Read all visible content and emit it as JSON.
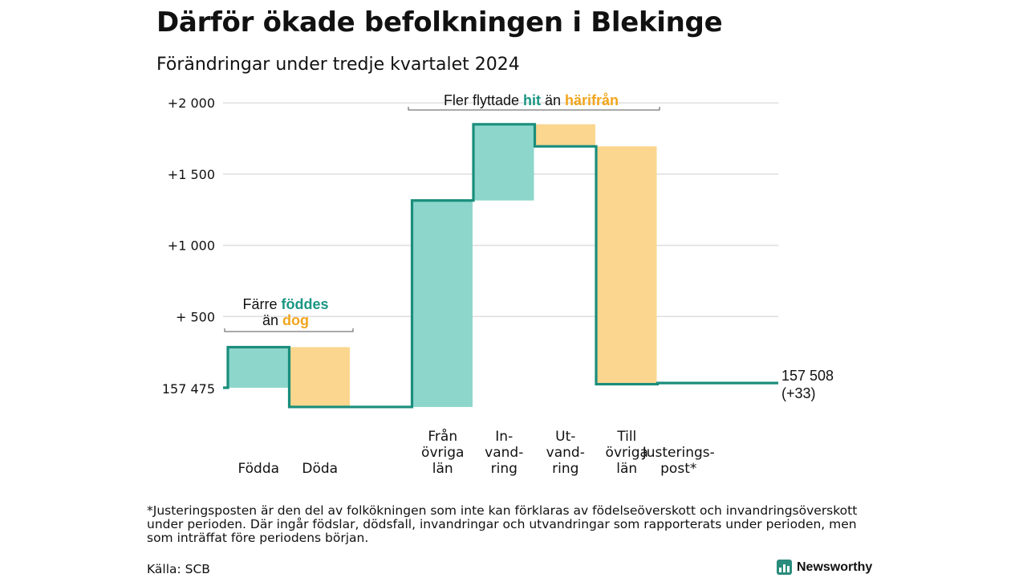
{
  "header": {
    "title": "Därför ökade befolkningen i Blekinge",
    "subtitle": "Förändringar under tredje kvartalet 2024"
  },
  "colors": {
    "increase_fill": "#8dd6cc",
    "decrease_fill": "#fbd68f",
    "line": "#1a8e7c",
    "accent_green": "#1a9683",
    "accent_orange": "#f2a51c",
    "grid": "#dedede"
  },
  "chart_data": {
    "type": "waterfall",
    "start": {
      "label": "157 475",
      "value": 0
    },
    "end": {
      "label": "157 508",
      "sublabel": "(+33)",
      "value": 33
    },
    "yticks": [
      {
        "value": 500,
        "label": "+  500"
      },
      {
        "value": 1000,
        "label": "+1 000"
      },
      {
        "value": 1500,
        "label": "+1 500"
      },
      {
        "value": 2000,
        "label": "+2 000"
      }
    ],
    "ylim": [
      -140,
      2030
    ],
    "grid": true,
    "steps": [
      {
        "label": "Födda",
        "label_lines": [
          "Födda"
        ],
        "change": 285,
        "start": 0,
        "end": 285,
        "type": "increase"
      },
      {
        "label": "Döda",
        "label_lines": [
          "Döda"
        ],
        "change": -420,
        "start": 285,
        "end": -135,
        "type": "decrease"
      },
      {
        "label": "",
        "label_lines": [],
        "change": 0,
        "start": -135,
        "end": -135,
        "type": "gap"
      },
      {
        "label": "Från övriga län",
        "label_lines": [
          "Från",
          "övriga",
          "län"
        ],
        "change": 1450,
        "start": -135,
        "end": 1315,
        "type": "increase"
      },
      {
        "label": "Invandring",
        "label_lines": [
          "In-",
          "vand-",
          "ring"
        ],
        "change": 535,
        "start": 1315,
        "end": 1850,
        "type": "increase"
      },
      {
        "label": "Utvandring",
        "label_lines": [
          "Ut-",
          "vand-",
          "ring"
        ],
        "change": -155,
        "start": 1850,
        "end": 1695,
        "type": "decrease"
      },
      {
        "label": "Till övriga län",
        "label_lines": [
          "Till",
          "övriga",
          "län"
        ],
        "change": -1670,
        "start": 1695,
        "end": 25,
        "type": "decrease"
      },
      {
        "label": "Justeringspost*",
        "label_lines": [
          "Justerings-",
          "post*"
        ],
        "change": 8,
        "start": 25,
        "end": 33,
        "type": "adjustment"
      }
    ],
    "annotations": [
      {
        "id": "births",
        "lines": [
          [
            {
              "text": "Färre ",
              "color": "normal"
            },
            {
              "text": "föddes",
              "color": "green"
            }
          ],
          [
            {
              "text": "än ",
              "color": "normal"
            },
            {
              "text": "dog",
              "color": "orange"
            }
          ]
        ],
        "spans_steps": [
          0,
          1
        ]
      },
      {
        "id": "migration",
        "lines": [
          [
            {
              "text": "Fler flyttade ",
              "color": "normal"
            },
            {
              "text": "hit",
              "color": "green"
            },
            {
              "text": " än ",
              "color": "normal"
            },
            {
              "text": "härifrån",
              "color": "orange"
            }
          ]
        ],
        "spans_steps": [
          3,
          6
        ]
      }
    ]
  },
  "footer": {
    "footnote": "*Justeringsposten är den del av folkökningen som inte kan förklaras av födelseöverskott och invandringsöverskott under perioden. Där ingår födslar, dödsfall, invandringar och utvandringar som rapporterats under perioden, men som inträffat före periodens början.",
    "source": "Källa: SCB",
    "brand": "Newsworthy",
    "brand_icon": "bar-chart-logo-icon"
  }
}
